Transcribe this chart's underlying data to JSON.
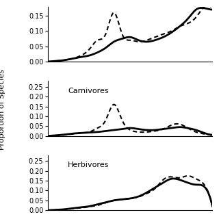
{
  "ylabel": "Proportion of Species",
  "panels": [
    {
      "label": "",
      "ylim": [
        0,
        0.18
      ],
      "yticks": [
        0,
        0.05,
        0.1,
        0.15
      ],
      "solid_x": [
        0,
        0.05,
        0.1,
        0.15,
        0.2,
        0.25,
        0.3,
        0.35,
        0.4,
        0.45,
        0.5,
        0.55,
        0.6,
        0.65,
        0.7,
        0.75,
        0.8,
        0.85,
        0.9,
        0.95,
        1.0
      ],
      "solid_y": [
        0,
        0.002,
        0.005,
        0.01,
        0.015,
        0.02,
        0.03,
        0.045,
        0.065,
        0.075,
        0.08,
        0.07,
        0.065,
        0.07,
        0.08,
        0.095,
        0.115,
        0.14,
        0.17,
        0.175,
        0.17
      ],
      "dotted_x": [
        0,
        0.05,
        0.1,
        0.15,
        0.2,
        0.25,
        0.3,
        0.35,
        0.4,
        0.45,
        0.5,
        0.55,
        0.6,
        0.65,
        0.7,
        0.75,
        0.8,
        0.85,
        0.9,
        0.95,
        1.0
      ],
      "dotted_y": [
        0,
        0.002,
        0.005,
        0.01,
        0.02,
        0.04,
        0.07,
        0.09,
        0.16,
        0.09,
        0.07,
        0.065,
        0.07,
        0.08,
        0.09,
        0.1,
        0.115,
        0.125,
        0.145,
        0.18,
        0.17
      ]
    },
    {
      "label": "Carnivores",
      "ylim": [
        0,
        0.28
      ],
      "yticks": [
        0,
        0.05,
        0.1,
        0.15,
        0.2,
        0.25
      ],
      "solid_x": [
        0,
        0.05,
        0.1,
        0.15,
        0.2,
        0.25,
        0.3,
        0.35,
        0.4,
        0.45,
        0.5,
        0.55,
        0.6,
        0.65,
        0.7,
        0.75,
        0.8,
        0.85,
        0.9,
        0.95,
        1.0
      ],
      "solid_y": [
        0,
        0.003,
        0.007,
        0.012,
        0.015,
        0.018,
        0.02,
        0.025,
        0.03,
        0.035,
        0.04,
        0.035,
        0.03,
        0.03,
        0.035,
        0.04,
        0.045,
        0.04,
        0.03,
        0.015,
        0.005
      ],
      "dotted_x": [
        0,
        0.05,
        0.1,
        0.15,
        0.2,
        0.25,
        0.3,
        0.35,
        0.4,
        0.45,
        0.5,
        0.55,
        0.6,
        0.65,
        0.7,
        0.75,
        0.8,
        0.85,
        0.9,
        0.95,
        1.0
      ],
      "dotted_y": [
        0,
        0.002,
        0.005,
        0.01,
        0.015,
        0.02,
        0.04,
        0.08,
        0.16,
        0.08,
        0.03,
        0.02,
        0.02,
        0.025,
        0.035,
        0.055,
        0.06,
        0.04,
        0.02,
        0.01,
        0.003
      ]
    },
    {
      "label": "Herbivores",
      "ylim": [
        0,
        0.28
      ],
      "yticks": [
        0,
        0.05,
        0.1,
        0.15,
        0.2,
        0.25
      ],
      "solid_x": [
        0,
        0.05,
        0.1,
        0.15,
        0.2,
        0.25,
        0.3,
        0.35,
        0.4,
        0.45,
        0.5,
        0.55,
        0.6,
        0.65,
        0.7,
        0.75,
        0.8,
        0.85,
        0.9,
        0.95,
        1.0
      ],
      "solid_y": [
        0,
        0.002,
        0.005,
        0.01,
        0.015,
        0.02,
        0.03,
        0.04,
        0.05,
        0.055,
        0.06,
        0.07,
        0.09,
        0.115,
        0.14,
        0.16,
        0.155,
        0.14,
        0.13,
        0.12,
        0.02
      ],
      "dotted_x": [
        0,
        0.05,
        0.1,
        0.15,
        0.2,
        0.25,
        0.3,
        0.35,
        0.4,
        0.45,
        0.5,
        0.55,
        0.6,
        0.65,
        0.7,
        0.75,
        0.8,
        0.85,
        0.9,
        0.95,
        1.0
      ],
      "dotted_y": [
        0,
        0.002,
        0.004,
        0.008,
        0.012,
        0.018,
        0.025,
        0.038,
        0.05,
        0.055,
        0.06,
        0.068,
        0.085,
        0.11,
        0.155,
        0.17,
        0.165,
        0.175,
        0.16,
        0.13,
        0.02
      ]
    }
  ],
  "solid_color": "#000000",
  "dotted_color": "#000000",
  "solid_lw": 2.0,
  "dotted_lw": 1.5,
  "bg_color": "#ffffff",
  "tick_fontsize": 7,
  "label_fontsize": 8
}
